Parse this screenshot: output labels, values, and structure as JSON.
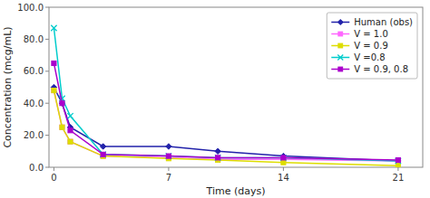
{
  "chart_data": {
    "type": "line",
    "xlabel": "Time (days)",
    "ylabel": "Concentration (mcg/mL)",
    "x": [
      0,
      0.5,
      1,
      3,
      7,
      10,
      14,
      21
    ],
    "series": [
      {
        "name": "Human (obs)",
        "color": "#2222aa",
        "marker": "diamond",
        "values": [
          50,
          40,
          25,
          13,
          13,
          10,
          7,
          4
        ]
      },
      {
        "name": "V = 1.0",
        "color": "#ff66ff",
        "marker": "square",
        "values": [
          48,
          25,
          16,
          7,
          6,
          5,
          5,
          4
        ]
      },
      {
        "name": "V = 0.9",
        "color": "#dddd00",
        "marker": "square",
        "values": [
          48,
          25,
          16,
          7,
          5.5,
          4.5,
          3,
          1
        ]
      },
      {
        "name": "V =0.8",
        "color": "#00cccc",
        "marker": "x",
        "values": [
          87,
          43,
          32,
          8,
          7,
          6,
          6,
          4
        ]
      },
      {
        "name": "V = 0.9, 0.8",
        "color": "#aa00cc",
        "marker": "square",
        "values": [
          65,
          40,
          23,
          8,
          7,
          6,
          6,
          4.5
        ]
      }
    ],
    "xlim": [
      -0.3,
      22.5
    ],
    "xticks": [
      0,
      7,
      14,
      21
    ],
    "ylim": [
      0,
      100.0
    ],
    "yticks": [
      {
        "value": 0.0,
        "label": "0.0"
      },
      {
        "value": 20.0,
        "label": "20.0"
      },
      {
        "value": 40.0,
        "label": "40.0"
      },
      {
        "value": 60.0,
        "label": "60.0"
      },
      {
        "value": 80.0,
        "label": "80.0"
      },
      {
        "value": 100.0,
        "label": "100.0"
      }
    ],
    "grid": false,
    "legend": "upper right"
  }
}
